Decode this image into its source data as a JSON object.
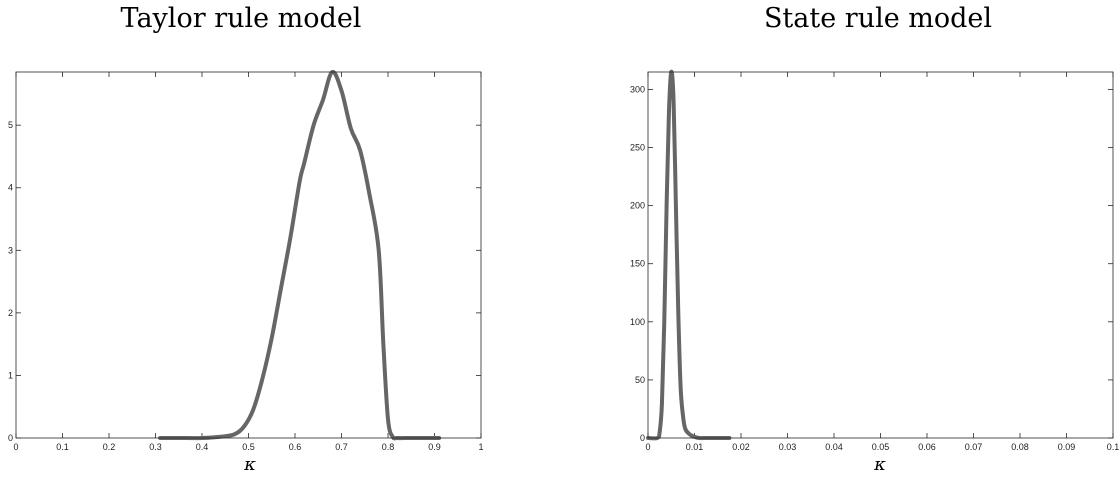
{
  "chart_data": [
    {
      "type": "line",
      "title": "Taylor rule model",
      "xlabel": "κ",
      "ylabel": "",
      "xlim": [
        0,
        1
      ],
      "ylim": [
        0,
        5.85
      ],
      "xticks": [
        0,
        0.1,
        0.2,
        0.3,
        0.4,
        0.5,
        0.6,
        0.7,
        0.8,
        0.9,
        1
      ],
      "xtick_labels": [
        "0",
        "0.1",
        "0.2",
        "0.3",
        "0.4",
        "0.5",
        "0.6",
        "0.7",
        "0.8",
        "0.9",
        "1"
      ],
      "yticks": [
        0,
        1,
        2,
        3,
        4,
        5
      ],
      "ytick_labels": [
        "0",
        "1",
        "2",
        "3",
        "4",
        "5"
      ],
      "grid": false,
      "line_color": "#666666",
      "series": [
        {
          "x": [
            0.31,
            0.35,
            0.4,
            0.44,
            0.47,
            0.49,
            0.51,
            0.53,
            0.55,
            0.57,
            0.59,
            0.61,
            0.62,
            0.64,
            0.66,
            0.68,
            0.7,
            0.72,
            0.74,
            0.76,
            0.78,
            0.79,
            0.8,
            0.81,
            0.82,
            0.85,
            0.91
          ],
          "y": [
            0,
            0,
            0,
            0.02,
            0.06,
            0.18,
            0.45,
            0.95,
            1.6,
            2.4,
            3.2,
            4.1,
            4.4,
            5.0,
            5.4,
            5.85,
            5.55,
            4.95,
            4.6,
            3.9,
            3.0,
            1.5,
            0.3,
            0.02,
            0,
            0,
            0
          ]
        }
      ]
    },
    {
      "type": "line",
      "title": "State rule model",
      "xlabel": "κ",
      "ylabel": "",
      "xlim": [
        0,
        0.1
      ],
      "ylim": [
        0,
        315
      ],
      "xticks": [
        0,
        0.01,
        0.02,
        0.03,
        0.04,
        0.05,
        0.06,
        0.07,
        0.08,
        0.09,
        0.1
      ],
      "xtick_labels": [
        "0",
        "0.01",
        "0.02",
        "0.03",
        "0.04",
        "0.05",
        "0.06",
        "0.07",
        "0.08",
        "0.09",
        "0.1"
      ],
      "yticks": [
        0,
        50,
        100,
        150,
        200,
        250,
        300
      ],
      "ytick_labels": [
        "0",
        "50",
        "100",
        "150",
        "200",
        "250",
        "300"
      ],
      "grid": false,
      "line_color": "#666666",
      "series": [
        {
          "x": [
            0,
            0.002,
            0.0025,
            0.003,
            0.0035,
            0.004,
            0.0045,
            0.005,
            0.0055,
            0.006,
            0.0065,
            0.007,
            0.0075,
            0.008,
            0.009,
            0.01,
            0.011,
            0.013,
            0.0175
          ],
          "y": [
            0,
            0,
            5,
            30,
            100,
            200,
            280,
            315,
            290,
            200,
            110,
            45,
            20,
            8,
            3,
            1,
            0,
            0,
            0
          ]
        }
      ]
    }
  ]
}
